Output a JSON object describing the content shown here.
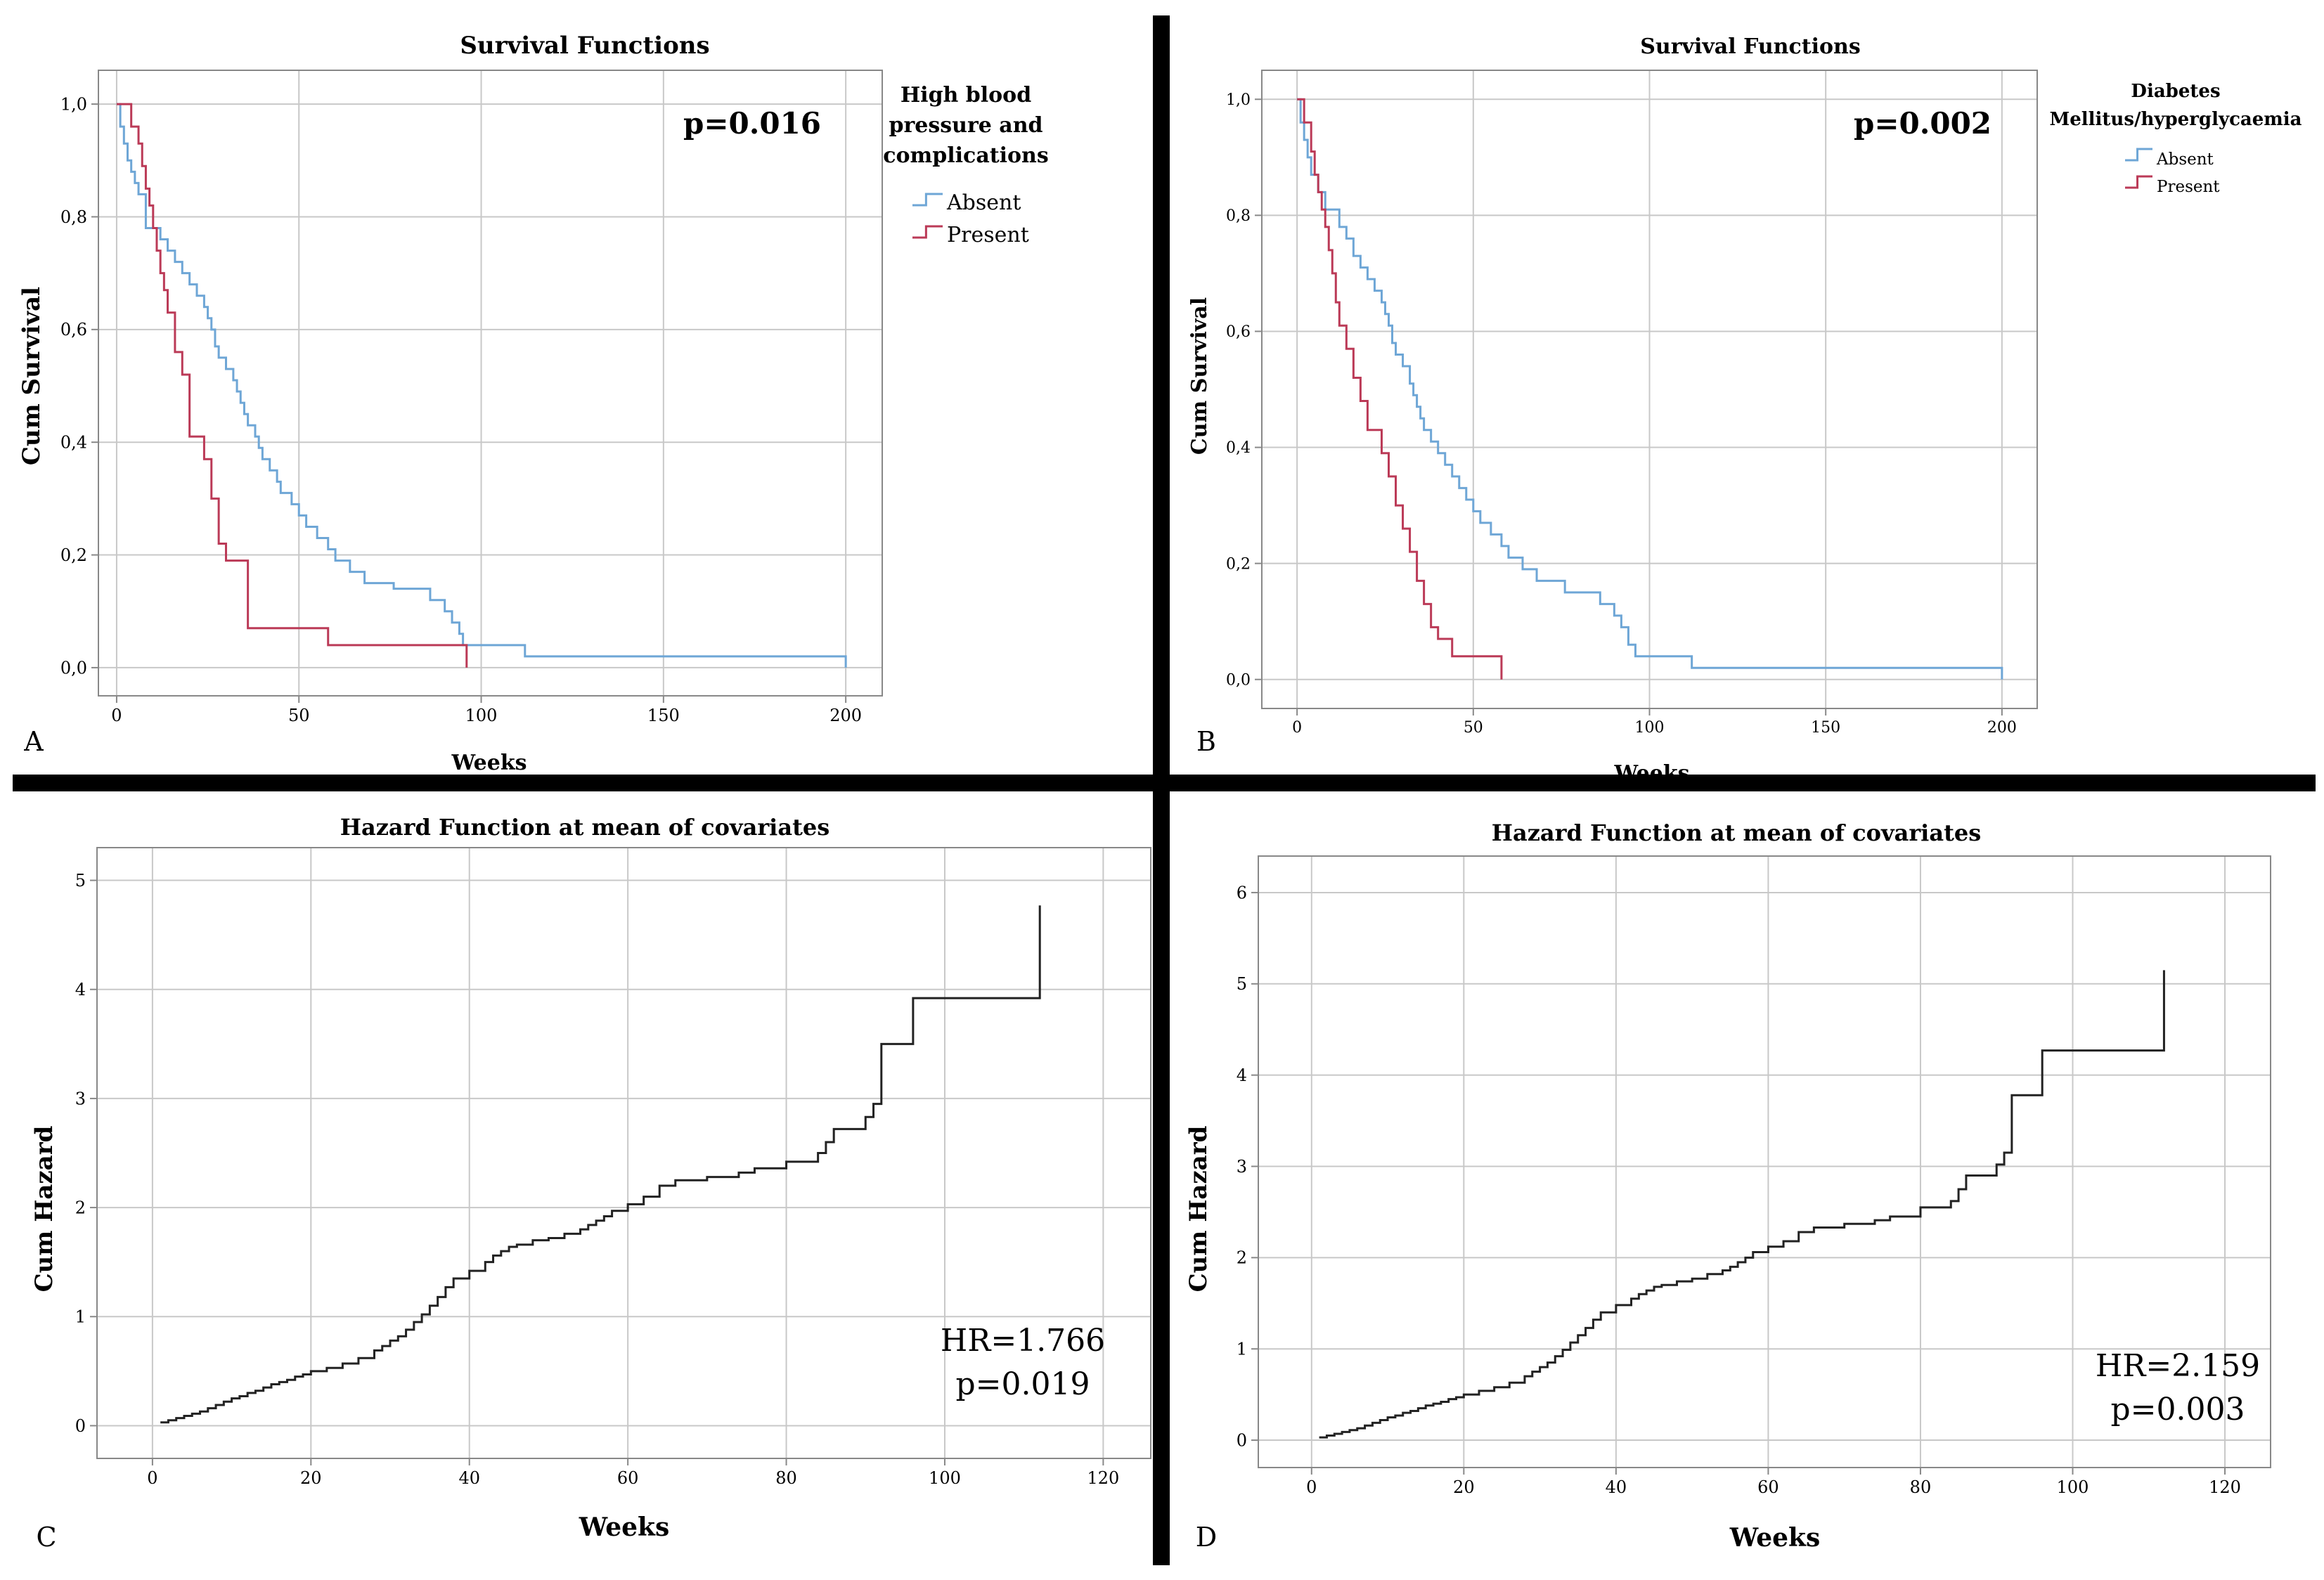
{
  "colors": {
    "absent": "#6ea6d6",
    "present": "#bb3a57",
    "hazard": "#222222",
    "grid": "#c8c8c8",
    "axis": "#888888",
    "divider": "#000000"
  },
  "chart_data": [
    {
      "id": "A",
      "panel_label": "A",
      "type": "line",
      "step": true,
      "title": "Survival Functions",
      "xlabel": "Weeks",
      "ylabel": "Cum Survival",
      "xlim": [
        -5,
        210
      ],
      "ylim": [
        -0.05,
        1.06
      ],
      "xticks": [
        0,
        50,
        100,
        150,
        200
      ],
      "yticks": [
        0,
        0.2,
        0.4,
        0.6,
        0.8,
        1.0
      ],
      "xtick_labels": [
        "0",
        "50",
        "100",
        "150",
        "200"
      ],
      "ytick_labels": [
        "0,0",
        "0,2",
        "0,4",
        "0,6",
        "0,8",
        "1,0"
      ],
      "grid": true,
      "annotation": "p=0.016",
      "legend": {
        "title": [
          "High blood",
          "pressure and",
          "complications"
        ],
        "entries": [
          "Absent",
          "Present"
        ],
        "position": "right"
      },
      "series": [
        {
          "name": "Absent",
          "color": "#6ea6d6",
          "x": [
            0,
            1,
            2,
            3,
            4,
            5,
            6,
            8,
            12,
            14,
            16,
            18,
            20,
            22,
            24,
            25,
            26,
            27,
            28,
            30,
            32,
            33,
            34,
            35,
            36,
            38,
            39,
            40,
            42,
            44,
            45,
            48,
            50,
            52,
            55,
            58,
            60,
            64,
            68,
            76,
            86,
            90,
            92,
            94,
            95,
            97,
            112,
            200
          ],
          "y": [
            1.0,
            0.96,
            0.93,
            0.9,
            0.88,
            0.86,
            0.84,
            0.78,
            0.76,
            0.74,
            0.72,
            0.7,
            0.68,
            0.66,
            0.64,
            0.62,
            0.6,
            0.57,
            0.55,
            0.53,
            0.51,
            0.49,
            0.47,
            0.45,
            0.43,
            0.41,
            0.39,
            0.37,
            0.35,
            0.33,
            0.31,
            0.29,
            0.27,
            0.25,
            0.23,
            0.21,
            0.19,
            0.17,
            0.15,
            0.14,
            0.12,
            0.1,
            0.08,
            0.06,
            0.04,
            0.04,
            0.02,
            0.0
          ]
        },
        {
          "name": "Present",
          "color": "#bb3a57",
          "x": [
            0,
            4,
            6,
            7,
            8,
            9,
            10,
            11,
            12,
            13,
            14,
            16,
            18,
            20,
            24,
            26,
            28,
            30,
            32,
            36,
            58,
            96
          ],
          "y": [
            1.0,
            0.96,
            0.93,
            0.89,
            0.85,
            0.82,
            0.78,
            0.74,
            0.7,
            0.67,
            0.63,
            0.56,
            0.52,
            0.41,
            0.37,
            0.3,
            0.22,
            0.19,
            0.19,
            0.07,
            0.04,
            0.0
          ]
        }
      ]
    },
    {
      "id": "B",
      "panel_label": "B",
      "type": "line",
      "step": true,
      "title": "Survival Functions",
      "xlabel": "Weeks",
      "ylabel": "Cum Survival",
      "xlim": [
        -10,
        210
      ],
      "ylim": [
        -0.05,
        1.05
      ],
      "xticks": [
        0,
        50,
        100,
        150,
        200
      ],
      "yticks": [
        0,
        0.2,
        0.4,
        0.6,
        0.8,
        1.0
      ],
      "xtick_labels": [
        "0",
        "50",
        "100",
        "150",
        "200"
      ],
      "ytick_labels": [
        "0,0",
        "0,2",
        "0,4",
        "0,6",
        "0,8",
        "1,0"
      ],
      "grid": true,
      "annotation": "p=0.002",
      "legend": {
        "title": [
          "Diabetes",
          "Mellitus/hyperglycaemia"
        ],
        "entries": [
          "Absent",
          "Present"
        ],
        "position": "right"
      },
      "series": [
        {
          "name": "Absent",
          "color": "#6ea6d6",
          "x": [
            0,
            1,
            2,
            3,
            4,
            6,
            8,
            12,
            14,
            16,
            18,
            20,
            22,
            24,
            25,
            26,
            27,
            28,
            30,
            32,
            33,
            34,
            35,
            36,
            38,
            40,
            42,
            44,
            46,
            48,
            50,
            52,
            55,
            58,
            60,
            64,
            68,
            76,
            86,
            90,
            92,
            94,
            96,
            112,
            200
          ],
          "y": [
            1.0,
            0.96,
            0.93,
            0.9,
            0.87,
            0.84,
            0.81,
            0.78,
            0.76,
            0.73,
            0.71,
            0.69,
            0.67,
            0.65,
            0.63,
            0.61,
            0.58,
            0.56,
            0.54,
            0.51,
            0.49,
            0.47,
            0.45,
            0.43,
            0.41,
            0.39,
            0.37,
            0.35,
            0.33,
            0.31,
            0.29,
            0.27,
            0.25,
            0.23,
            0.21,
            0.19,
            0.17,
            0.15,
            0.13,
            0.11,
            0.09,
            0.06,
            0.04,
            0.02,
            0.0
          ]
        },
        {
          "name": "Present",
          "color": "#bb3a57",
          "x": [
            0,
            2,
            4,
            5,
            6,
            7,
            8,
            9,
            10,
            11,
            12,
            14,
            16,
            18,
            20,
            24,
            26,
            28,
            30,
            32,
            34,
            36,
            38,
            40,
            44,
            58
          ],
          "y": [
            1.0,
            0.96,
            0.91,
            0.87,
            0.84,
            0.81,
            0.78,
            0.74,
            0.7,
            0.65,
            0.61,
            0.57,
            0.52,
            0.48,
            0.43,
            0.39,
            0.35,
            0.3,
            0.26,
            0.22,
            0.17,
            0.13,
            0.09,
            0.07,
            0.04,
            0.0
          ]
        }
      ]
    },
    {
      "id": "C",
      "panel_label": "C",
      "type": "line",
      "step": true,
      "title": "Hazard Function at mean of covariates",
      "xlabel": "Weeks",
      "ylabel": "Cum Hazard",
      "xlim": [
        -7,
        126
      ],
      "ylim": [
        -0.3,
        5.3
      ],
      "xticks": [
        0,
        20,
        40,
        60,
        80,
        100,
        120
      ],
      "yticks": [
        0,
        1,
        2,
        3,
        4,
        5
      ],
      "xtick_labels": [
        "0",
        "20",
        "40",
        "60",
        "80",
        "100",
        "120"
      ],
      "ytick_labels": [
        "0",
        "1",
        "2",
        "3",
        "4",
        "5"
      ],
      "grid": true,
      "annotation": [
        "HR=1.766",
        "p=0.019"
      ],
      "series": [
        {
          "name": "Cum Hazard",
          "color": "#222222",
          "x": [
            1,
            2,
            3,
            4,
            5,
            6,
            7,
            8,
            9,
            10,
            11,
            12,
            13,
            14,
            15,
            16,
            17,
            18,
            19,
            20,
            22,
            24,
            26,
            28,
            29,
            30,
            31,
            32,
            33,
            34,
            35,
            36,
            37,
            38,
            40,
            42,
            43,
            44,
            45,
            46,
            48,
            50,
            52,
            54,
            55,
            56,
            57,
            58,
            60,
            62,
            64,
            66,
            70,
            74,
            76,
            80,
            84,
            85,
            86,
            90,
            91,
            92,
            96,
            106,
            108,
            112
          ],
          "y": [
            0.03,
            0.05,
            0.07,
            0.09,
            0.11,
            0.13,
            0.16,
            0.19,
            0.22,
            0.25,
            0.27,
            0.3,
            0.32,
            0.35,
            0.38,
            0.4,
            0.42,
            0.45,
            0.47,
            0.5,
            0.53,
            0.57,
            0.62,
            0.69,
            0.73,
            0.78,
            0.82,
            0.88,
            0.95,
            1.02,
            1.1,
            1.18,
            1.27,
            1.35,
            1.42,
            1.5,
            1.56,
            1.6,
            1.64,
            1.66,
            1.7,
            1.72,
            1.76,
            1.8,
            1.84,
            1.88,
            1.92,
            1.97,
            2.03,
            2.1,
            2.2,
            2.25,
            2.28,
            2.32,
            2.36,
            2.42,
            2.5,
            2.6,
            2.72,
            2.83,
            2.95,
            3.5,
            3.92,
            3.92,
            3.92,
            4.77
          ]
        }
      ]
    },
    {
      "id": "D",
      "panel_label": "D",
      "type": "line",
      "step": true,
      "title": "Hazard Function at mean of covariates",
      "xlabel": "Weeks",
      "ylabel": "Cum Hazard",
      "xlim": [
        -7,
        126
      ],
      "ylim": [
        -0.3,
        6.4
      ],
      "xticks": [
        0,
        20,
        40,
        60,
        80,
        100,
        120
      ],
      "yticks": [
        0,
        1,
        2,
        3,
        4,
        5,
        6
      ],
      "xtick_labels": [
        "0",
        "20",
        "40",
        "60",
        "80",
        "100",
        "120"
      ],
      "ytick_labels": [
        "0",
        "1",
        "2",
        "3",
        "4",
        "5",
        "6"
      ],
      "grid": true,
      "annotation": [
        "HR=2.159",
        "p=0.003"
      ],
      "series": [
        {
          "name": "Cum Hazard",
          "color": "#222222",
          "x": [
            1,
            2,
            3,
            4,
            5,
            6,
            7,
            8,
            9,
            10,
            11,
            12,
            13,
            14,
            15,
            16,
            17,
            18,
            19,
            20,
            22,
            24,
            26,
            28,
            29,
            30,
            31,
            32,
            33,
            34,
            35,
            36,
            37,
            38,
            40,
            42,
            43,
            44,
            45,
            46,
            48,
            50,
            52,
            54,
            55,
            56,
            57,
            58,
            60,
            62,
            64,
            66,
            70,
            74,
            76,
            80,
            84,
            85,
            86,
            90,
            91,
            92,
            96,
            106,
            108,
            112
          ],
          "y": [
            0.03,
            0.05,
            0.07,
            0.09,
            0.11,
            0.13,
            0.16,
            0.19,
            0.22,
            0.25,
            0.27,
            0.3,
            0.32,
            0.35,
            0.38,
            0.4,
            0.42,
            0.45,
            0.47,
            0.5,
            0.54,
            0.58,
            0.63,
            0.7,
            0.75,
            0.8,
            0.85,
            0.92,
            0.99,
            1.07,
            1.15,
            1.23,
            1.32,
            1.4,
            1.48,
            1.55,
            1.6,
            1.64,
            1.68,
            1.7,
            1.74,
            1.77,
            1.82,
            1.86,
            1.9,
            1.95,
            2.0,
            2.06,
            2.12,
            2.18,
            2.28,
            2.33,
            2.37,
            2.41,
            2.45,
            2.55,
            2.62,
            2.75,
            2.9,
            3.02,
            3.15,
            3.78,
            4.27,
            4.27,
            4.27,
            5.15
          ]
        }
      ]
    }
  ]
}
